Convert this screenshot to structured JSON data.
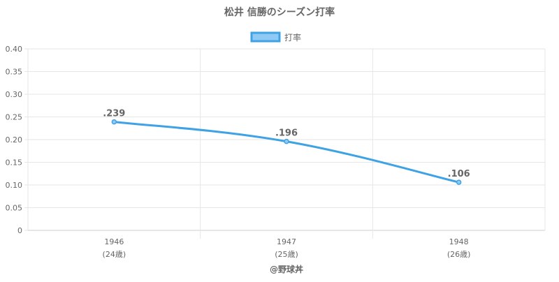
{
  "chart_data": {
    "type": "line",
    "title": "松井 信勝のシーズン打率",
    "legend": {
      "label": "打率",
      "position": "top"
    },
    "x": [
      "1946",
      "1947",
      "1948"
    ],
    "x_sublabels": [
      "(24歳)",
      "(25歳)",
      "(26歳)"
    ],
    "series": [
      {
        "name": "打率",
        "values": [
          0.239,
          0.196,
          0.106
        ],
        "labels": [
          ".239",
          ".196",
          ".106"
        ]
      }
    ],
    "ylim": [
      0,
      0.4
    ],
    "yticks": [
      "0",
      "0.05",
      "0.10",
      "0.15",
      "0.20",
      "0.25",
      "0.30",
      "0.35",
      "0.40"
    ],
    "grid": true,
    "colors": {
      "line": "#3ea2e5",
      "fill": "#90caf4",
      "grid": "#e6e6e6",
      "text": "#666666"
    }
  },
  "footer": {
    "credit": "@野球丼"
  }
}
